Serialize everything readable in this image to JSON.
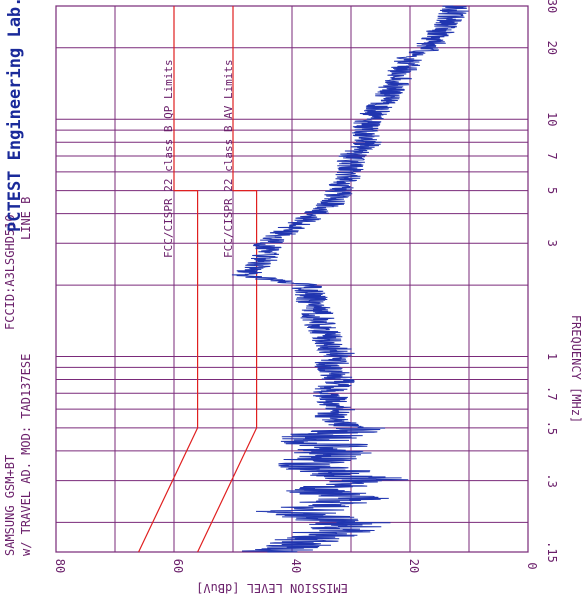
{
  "chart_data": {
    "type": "line",
    "orientation": "rotated-90-clockwise",
    "header": {
      "line1": "SAMSUNG GSM+BT",
      "line2": "w/ TRAVEL AD. MOD: TAD137ESE",
      "fccid": "FCCID:A3LSGHD510",
      "line": "LINE B",
      "lab": "PCTEST Engineering Lab."
    },
    "xlabel": "FREQUENCY [MHz]",
    "ylabel": "EMISSION LEVEL [dBuV]",
    "x_scale": "log",
    "xlim": [
      0.15,
      30
    ],
    "ylim": [
      0,
      80
    ],
    "x_ticks": [
      {
        "value": 0.15,
        "label": ".15"
      },
      {
        "value": 0.3,
        "label": ".3"
      },
      {
        "value": 0.5,
        "label": ".5"
      },
      {
        "value": 0.7,
        "label": ".7"
      },
      {
        "value": 1,
        "label": "1"
      },
      {
        "value": 3,
        "label": "3"
      },
      {
        "value": 5,
        "label": "5"
      },
      {
        "value": 7,
        "label": "7"
      },
      {
        "value": 10,
        "label": "10"
      },
      {
        "value": 20,
        "label": "20"
      },
      {
        "value": 30,
        "label": "30"
      }
    ],
    "y_ticks": [
      {
        "value": 80,
        "label": "80"
      },
      {
        "value": 60,
        "label": "60"
      },
      {
        "value": 40,
        "label": "40"
      },
      {
        "value": 20,
        "label": "20"
      },
      {
        "value": 0,
        "label": "0"
      }
    ],
    "grid_x_lines": [
      0.15,
      0.2,
      0.3,
      0.4,
      0.5,
      0.6,
      0.7,
      0.8,
      0.9,
      1,
      2,
      3,
      4,
      5,
      6,
      7,
      8,
      9,
      10,
      20,
      30
    ],
    "grid_y_lines": [
      0,
      10,
      20,
      30,
      40,
      50,
      60,
      70,
      80
    ],
    "limits": [
      {
        "name": "FCC/CISPR 22 class B QP Limits",
        "points": [
          [
            0.15,
            66
          ],
          [
            0.5,
            56
          ],
          [
            5,
            56
          ],
          [
            5,
            60
          ],
          [
            30,
            60
          ]
        ],
        "color": "#e02020"
      },
      {
        "name": "FCC/CISPR 22 class B AV Limits",
        "points": [
          [
            0.15,
            56
          ],
          [
            0.5,
            46
          ],
          [
            5,
            46
          ],
          [
            5,
            50
          ],
          [
            30,
            50
          ]
        ],
        "color": "#e02020"
      }
    ],
    "series": [
      {
        "color": "#2035b0",
        "x": [
          0.15,
          0.17,
          0.2,
          0.22,
          0.25,
          0.28,
          0.3,
          0.35,
          0.4,
          0.45,
          0.5,
          0.55,
          0.6,
          0.7,
          0.8,
          0.9,
          1,
          1.2,
          1.5,
          1.8,
          2,
          2.2,
          2.5,
          3,
          3.5,
          4,
          4.5,
          5,
          6,
          7,
          8,
          9,
          10,
          12,
          15,
          18,
          20,
          25,
          30
        ],
        "values": [
          42,
          36,
          30,
          40,
          30,
          36,
          26,
          38,
          32,
          36,
          30,
          34,
          32,
          34,
          32,
          34,
          32,
          34,
          36,
          37,
          38,
          48,
          45,
          44,
          40,
          36,
          33,
          32,
          30,
          30,
          27,
          28,
          27,
          24,
          22,
          20,
          17,
          14,
          12
        ]
      }
    ],
    "annotations": [
      "FCC/CISPR 22 class B QP Limits",
      "FCC/CISPR 22 class B AV Limits"
    ]
  }
}
